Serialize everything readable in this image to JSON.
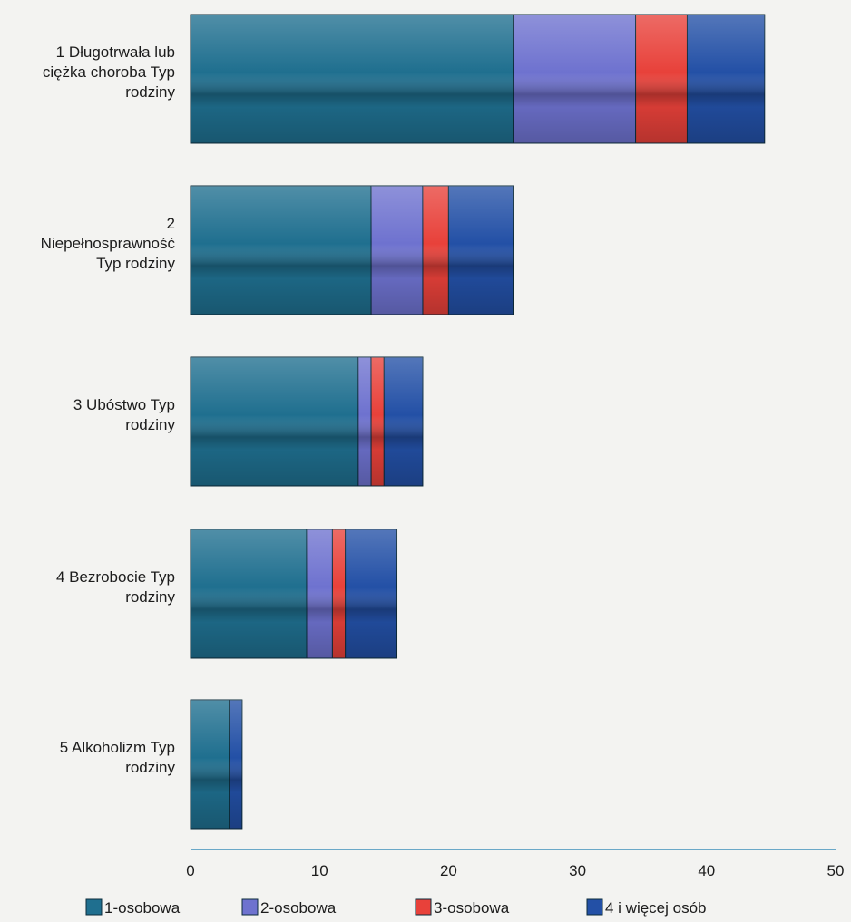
{
  "chart_data": {
    "type": "bar",
    "orientation": "horizontal",
    "stacked": true,
    "categories": [
      [
        "1 Długotrwała lub",
        "ciężka choroba Typ",
        "rodziny"
      ],
      [
        "2",
        "Niepełnosprawność",
        "Typ rodziny"
      ],
      [
        "3 Ubóstwo Typ",
        "rodziny"
      ],
      [
        "4 Bezrobocie Typ",
        "rodziny"
      ],
      [
        "5 Alkoholizm Typ",
        "rodziny"
      ]
    ],
    "series": [
      {
        "name": "1-osobowa",
        "color": "#1f6f8f",
        "values": [
          25,
          14,
          13,
          9,
          3
        ]
      },
      {
        "name": "2-osobowa",
        "color": "#6e72cf",
        "values": [
          9.5,
          4,
          1,
          2,
          0
        ]
      },
      {
        "name": "3-osobowa",
        "color": "#e8413a",
        "values": [
          4,
          2,
          1,
          1,
          0
        ]
      },
      {
        "name": "4  i więcej osób",
        "color": "#2350a6",
        "values": [
          6,
          5,
          3,
          4,
          1
        ]
      }
    ],
    "xlim": [
      0,
      50
    ],
    "xticks": [
      "0",
      "10",
      "20",
      "30",
      "40",
      "50"
    ],
    "grid": false,
    "legend_position": "bottom"
  }
}
